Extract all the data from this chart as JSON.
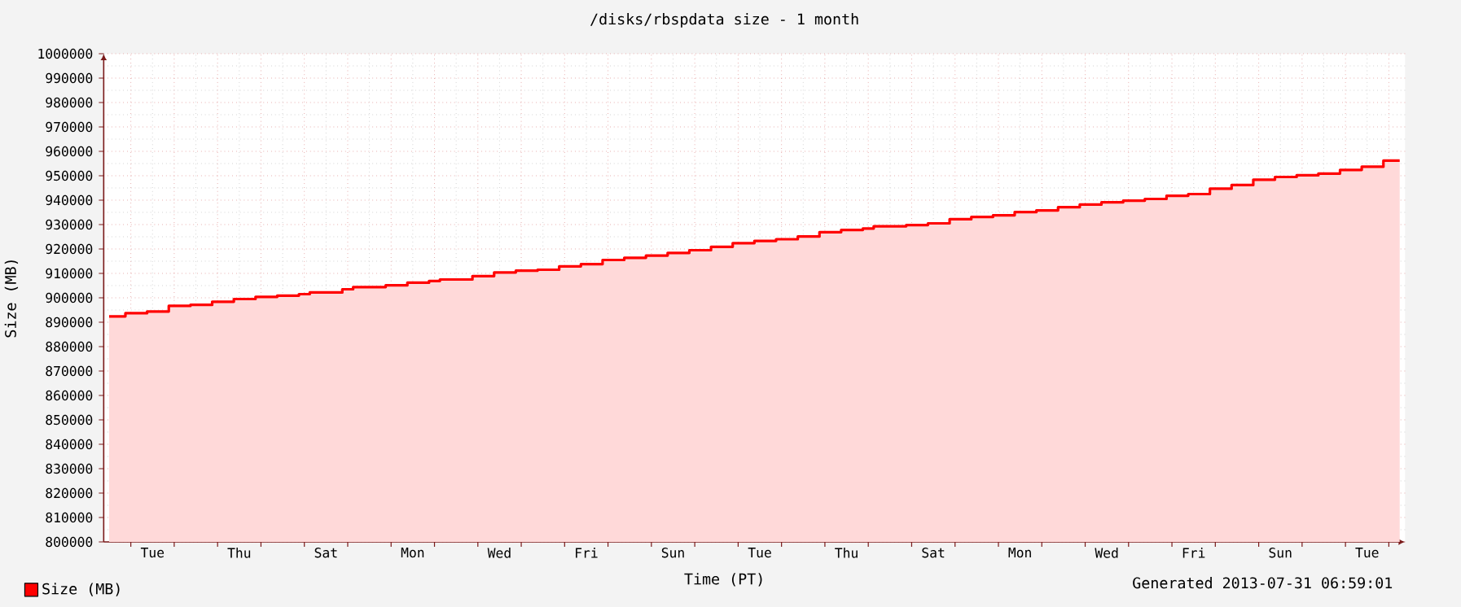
{
  "chart_data": {
    "type": "area",
    "title": "/disks/rbspdata size - 1 month",
    "xlabel": "Time (PT)",
    "ylabel": "Size (MB)",
    "annotations": [
      "Generated 2013-07-31 06:59:01"
    ],
    "categories": [
      null,
      null,
      null,
      null,
      "Tue",
      null,
      null,
      null,
      null,
      null,
      null,
      null,
      "Thu",
      null,
      null,
      null,
      null,
      null,
      null,
      null,
      "Sat",
      null,
      null,
      null,
      null,
      null,
      null,
      null,
      "Mon",
      null,
      null,
      null,
      null,
      null,
      null,
      null,
      "Wed",
      null,
      null,
      null,
      null,
      null,
      null,
      null,
      "Fri",
      null,
      null,
      null,
      null,
      null,
      null,
      null,
      "Sun",
      null,
      null,
      null,
      null,
      null,
      null,
      null,
      "Tue",
      null,
      null,
      null,
      null,
      null,
      null,
      null,
      "Thu",
      null,
      null,
      null,
      null,
      null,
      null,
      null,
      "Sat",
      null,
      null,
      null,
      null,
      null,
      null,
      null,
      "Mon",
      null,
      null,
      null,
      null,
      null,
      null,
      null,
      "Wed",
      null,
      null,
      null,
      null,
      null,
      null,
      null,
      "Fri",
      null,
      null,
      null,
      null,
      null,
      null,
      null,
      "Sun",
      null,
      null,
      null,
      null,
      null,
      null,
      null,
      "Tue",
      null,
      null,
      null
    ],
    "series": [
      {
        "name": "Size (MB)",
        "color": "#ff0000",
        "values": [
          892400,
          892400,
          893700,
          893700,
          894400,
          894400,
          896700,
          896700,
          897100,
          897100,
          898400,
          898400,
          899500,
          899500,
          900400,
          900400,
          900900,
          900900,
          901500,
          902200,
          902200,
          902200,
          903500,
          904400,
          904400,
          904400,
          905100,
          905100,
          906200,
          906200,
          906900,
          907500,
          907500,
          907500,
          908900,
          908900,
          910400,
          910400,
          911100,
          911100,
          911500,
          911500,
          912900,
          912900,
          913800,
          913800,
          915500,
          915500,
          916400,
          916400,
          917300,
          917300,
          918400,
          918400,
          919500,
          919500,
          920900,
          920900,
          922400,
          922400,
          923300,
          923300,
          924000,
          924000,
          925100,
          925100,
          926900,
          926900,
          927800,
          927800,
          928400,
          929300,
          929300,
          929300,
          929800,
          929800,
          930500,
          930500,
          932200,
          932200,
          933100,
          933100,
          933800,
          933800,
          935100,
          935100,
          935800,
          935800,
          937100,
          937100,
          938200,
          938200,
          939100,
          939100,
          939800,
          939800,
          940500,
          940500,
          941800,
          941800,
          942500,
          942500,
          944700,
          944700,
          946200,
          946200,
          948400,
          948400,
          949500,
          949500,
          950200,
          950200,
          950900,
          950900,
          952400,
          952400,
          953700,
          953700,
          956200,
          956200
        ]
      }
    ],
    "ylim": [
      800000,
      1000000
    ],
    "yticks": [
      800000,
      810000,
      820000,
      830000,
      840000,
      850000,
      860000,
      870000,
      880000,
      890000,
      900000,
      910000,
      920000,
      930000,
      940000,
      950000,
      960000,
      970000,
      980000,
      990000,
      1000000
    ],
    "grid": true,
    "legend": "bottom left"
  }
}
